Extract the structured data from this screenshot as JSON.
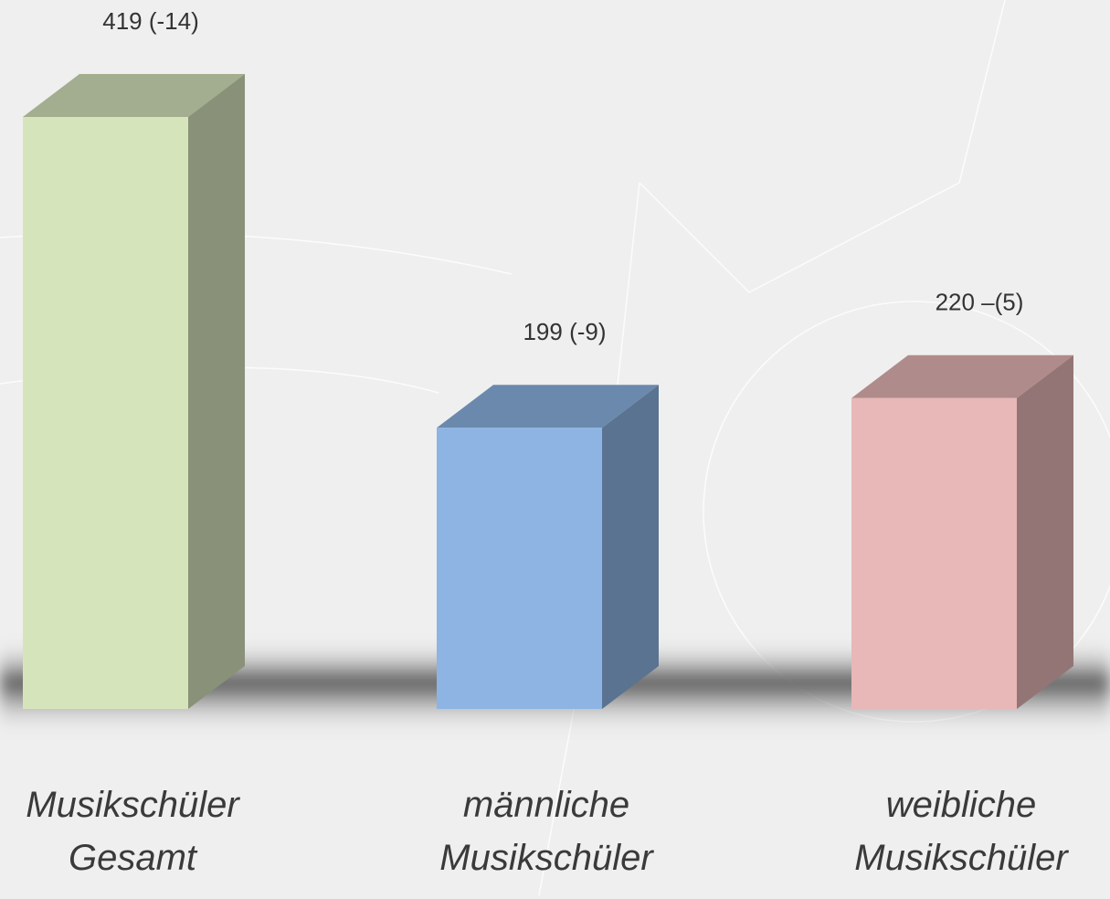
{
  "chart_data": {
    "type": "bar3d",
    "categories": [
      "Musikschüler\nGesamt",
      "männliche\nMusikschüler",
      "weibliche\nMusikschüler"
    ],
    "values": [
      419,
      199,
      220
    ],
    "value_labels": [
      "419 (-14)",
      "199 (-9)",
      "220 –(5)"
    ],
    "colors": [
      "#d6e4bc",
      "#8db4e3",
      "#e8b7b7"
    ]
  }
}
